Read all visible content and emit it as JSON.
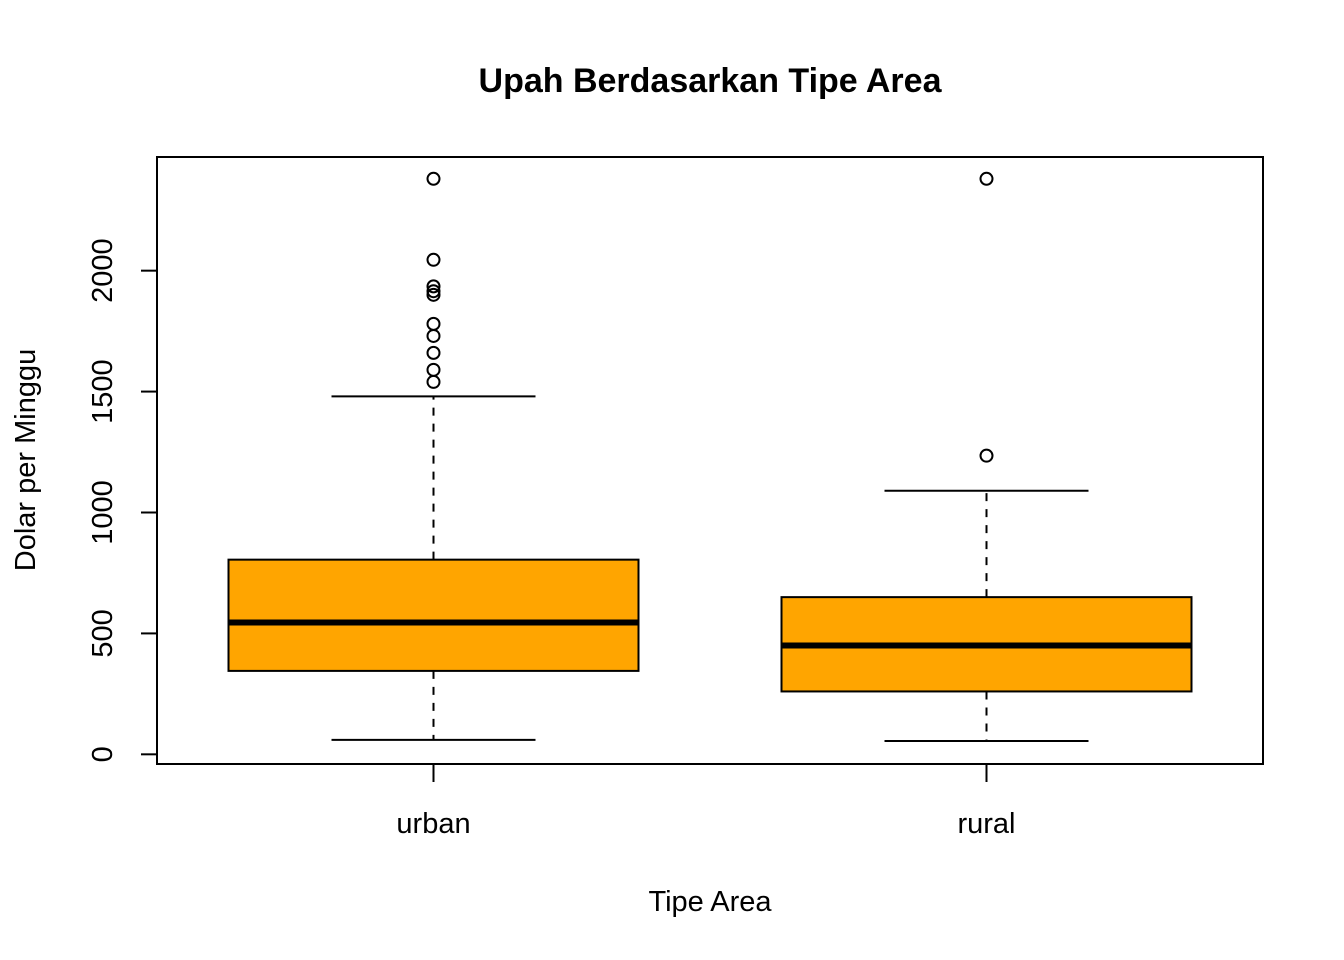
{
  "chart_data": {
    "type": "boxplot",
    "title": "Upah Berdasarkan Tipe Area",
    "xlabel": "Tipe Area",
    "ylabel": "Dolar per Minggu",
    "ylim": [
      -40,
      2470
    ],
    "yticks": [
      0,
      500,
      1000,
      1500,
      2000
    ],
    "categories": [
      "urban",
      "rural"
    ],
    "box_color": "#FFA500",
    "series": [
      {
        "category": "urban",
        "whisker_low": 60,
        "q1": 345,
        "median": 545,
        "q3": 805,
        "whisker_high": 1480,
        "outliers": [
          2380,
          2045,
          1935,
          1915,
          1900,
          1780,
          1730,
          1660,
          1590,
          1540
        ]
      },
      {
        "category": "rural",
        "whisker_low": 55,
        "q1": 260,
        "median": 450,
        "q3": 650,
        "whisker_high": 1090,
        "outliers": [
          2380,
          1235
        ]
      }
    ],
    "grid": false,
    "legend": "none"
  }
}
